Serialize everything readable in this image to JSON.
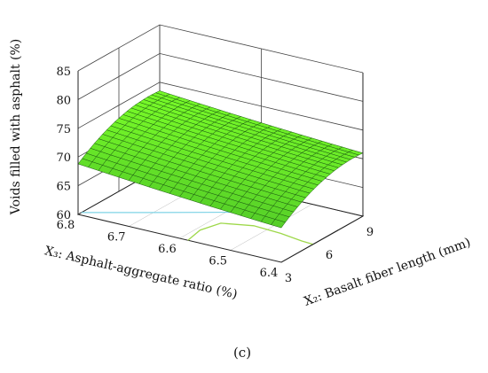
{
  "chart_data": {
    "type": "surface3d",
    "zlabel": "Voids filled with asphalt (%)",
    "xlabel": "X₂: Basalt fiber length (mm)",
    "ylabel": "X₃: Asphalt-aggregate ratio (%)",
    "caption": "(c)",
    "z_ticks": [
      "60",
      "65",
      "70",
      "75",
      "80",
      "85"
    ],
    "x_ticks": [
      "3",
      "6",
      "9"
    ],
    "y_ticks": [
      "6.4",
      "6.5",
      "6.6",
      "6.7",
      "6.8"
    ],
    "zlim": [
      60,
      85
    ],
    "xlim": [
      3,
      9
    ],
    "ylim": [
      6.4,
      6.8
    ],
    "surface_color": "#66ee33",
    "mesh_color": "#1a5a10",
    "contour_color_low": "#9ed84a",
    "contour_color_high": "#7fd3e6",
    "surface_samples": [
      {
        "x2": 3,
        "x3": 6.8,
        "vfa": 68.8
      },
      {
        "x2": 3,
        "x3": 6.4,
        "vfa": 66.0
      },
      {
        "x2": 6,
        "x3": 6.6,
        "vfa": 72.5
      },
      {
        "x2": 9,
        "x3": 6.8,
        "vfa": 73.5
      },
      {
        "x2": 9,
        "x3": 6.4,
        "vfa": 71.0
      }
    ]
  }
}
